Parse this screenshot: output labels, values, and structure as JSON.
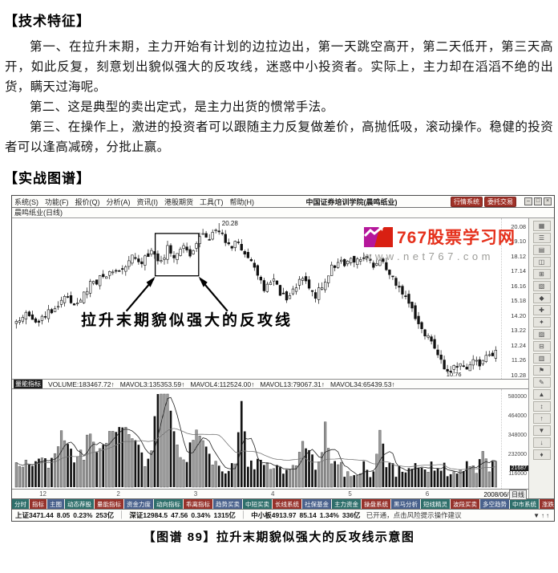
{
  "page": {
    "section1_title": "【技术特征】",
    "paragraphs": [
      "第一、在拉升末期，主力开始有计划的边拉边出，第一天跳空高开，第二天低开，第三天高开，如此反复，刻意划出貌似强大的反攻线，迷惑中小投资者。实际上，主力却在滔滔不绝的出货，瞒天过海呢。",
      "第二、这是典型的卖出定式，是主力出货的惯常手法。",
      "第三、在操作上，激进的投资者可以跟随主力反复做差价，高抛低吸，滚动操作。稳健的投资者可以逢高减磅，分批止赢。"
    ],
    "section2_title": "【实战图谱】",
    "caption": "【图谱 89】拉升末期貌似强大的反攻线示意图"
  },
  "app": {
    "menu": [
      "系统(S)",
      "功能(F)",
      "报价(Q)",
      "分析(A)",
      "资讯(I)",
      "港股期货",
      "工具(T)",
      "帮助(H)"
    ],
    "window_title": "中国证券培训学院(晨鸣纸业)",
    "header_buttons": [
      "行情系统",
      "委托交易"
    ],
    "window_controls": [
      "–",
      "□",
      "×"
    ],
    "tab_label": "晨鸣纸业(日线)",
    "watermark": {
      "brand": "767股票学习网",
      "url": "www.net767.com",
      "brand_color": "#e5301b"
    },
    "annotation": "拉升末期貌似强大的反攻线",
    "peak_label": "20.28",
    "low_label": "10.76",
    "indicator": {
      "name": "量能指标",
      "items": [
        "VOLUME:183467.72↑",
        "MAVOL3:135353.59↑",
        "MAVOL4:112524.00↑",
        "MAVOL13:79067.31↑",
        "MAVOL34:65439.53↑"
      ]
    },
    "price_axis": [
      "20.08",
      "19.10",
      "18.12",
      "17.14",
      "16.16",
      "15.18",
      "14.20",
      "13.22",
      "12.24",
      "11.26",
      "10.28"
    ],
    "volume_axis": [
      "580000",
      "464000",
      "348000",
      "232000",
      "116000"
    ],
    "volume_current": "21687",
    "date_ticks": [
      {
        "f": 0.05,
        "label": "12"
      },
      {
        "f": 0.21,
        "label": "2"
      },
      {
        "f": 0.37,
        "label": "3"
      },
      {
        "f": 0.53,
        "label": "4"
      },
      {
        "f": 0.69,
        "label": "5"
      },
      {
        "f": 0.85,
        "label": "6"
      }
    ],
    "date_label": "2008/06/11/三",
    "period_label": "日线",
    "chips": [
      "分时",
      "指标",
      "主图",
      "动态荐股",
      "量能指标",
      "资金力度",
      "动向指标",
      "乖离指标",
      "趋势买卖",
      "中短买卖",
      "长线系统",
      "社保基金",
      "主力资金",
      "操盘系统",
      "黑马分析",
      "短线精灵",
      "波段买卖",
      "多空趋势",
      "中市系统",
      "涨跌速度",
      "期现价差",
      "历史资料"
    ],
    "chip_colors": [
      "#2e6f6b",
      "#96312a",
      "#49618c"
    ],
    "status": [
      {
        "name": "上证",
        "value": "3471.44",
        "chg": "8.05",
        "pct": "0.23%",
        "amt": "253亿"
      },
      {
        "name": "深证",
        "value": "12984.5",
        "chg": "47.56",
        "pct": "0.34%",
        "amt": "1315亿"
      },
      {
        "name": "中小板",
        "value": "4913.97",
        "chg": "85.14",
        "pct": "1.34%",
        "amt": "336亿"
      }
    ],
    "marquee": "已开通，点击风险提示操作建议",
    "status_icons": [
      "▼",
      "↑",
      "↑"
    ],
    "strip_icons": [
      {
        "name": "grid",
        "glyph": "▦"
      },
      {
        "name": "list",
        "glyph": "☰"
      },
      {
        "name": "rows",
        "glyph": "▤"
      },
      {
        "name": "window",
        "glyph": "◫"
      },
      {
        "name": "plus-grid",
        "glyph": "⊞"
      },
      {
        "name": "hatch",
        "glyph": "▧"
      },
      {
        "name": "diamond",
        "glyph": "◆"
      },
      {
        "name": "cross",
        "glyph": "✚"
      },
      {
        "name": "star",
        "glyph": "✦"
      },
      {
        "name": "shade",
        "glyph": "▨"
      },
      {
        "name": "minus-grid",
        "glyph": "⊟"
      },
      {
        "name": "bars",
        "glyph": "▥"
      },
      {
        "name": "flag",
        "glyph": "⚑"
      },
      {
        "name": "pen",
        "glyph": "✎"
      },
      {
        "name": "triangle-up",
        "glyph": "▲"
      },
      {
        "name": "arrows-vert",
        "glyph": "↕"
      },
      {
        "name": "arrow-up",
        "glyph": "↑"
      },
      {
        "name": "triangle-down",
        "glyph": "▼"
      },
      {
        "name": "arrow-down",
        "glyph": "↓"
      },
      {
        "name": "diamond-small",
        "glyph": "♦"
      }
    ]
  },
  "chart_data": {
    "type": "candlestick+volume",
    "title": "晨鸣纸业 日线",
    "n": 150,
    "ylim": [
      10.0,
      20.6
    ],
    "peak_value": 20.28,
    "low_value": 10.76,
    "price_anchors": [
      [
        0.0,
        13.8
      ],
      [
        0.02,
        14.2
      ],
      [
        0.045,
        13.9
      ],
      [
        0.07,
        14.5
      ],
      [
        0.1,
        15.3
      ],
      [
        0.125,
        15.0
      ],
      [
        0.15,
        16.1
      ],
      [
        0.175,
        16.6
      ],
      [
        0.2,
        17.3
      ],
      [
        0.22,
        17.0
      ],
      [
        0.245,
        18.2
      ],
      [
        0.265,
        17.7
      ],
      [
        0.285,
        18.8
      ],
      [
        0.3,
        17.4
      ],
      [
        0.315,
        18.6
      ],
      [
        0.33,
        17.8
      ],
      [
        0.345,
        19.0
      ],
      [
        0.36,
        18.2
      ],
      [
        0.375,
        18.9
      ],
      [
        0.39,
        19.8
      ],
      [
        0.405,
        19.3
      ],
      [
        0.415,
        20.1
      ],
      [
        0.43,
        19.4
      ],
      [
        0.445,
        18.6
      ],
      [
        0.46,
        19.2
      ],
      [
        0.475,
        18.5
      ],
      [
        0.49,
        17.6
      ],
      [
        0.505,
        16.6
      ],
      [
        0.52,
        15.9
      ],
      [
        0.535,
        16.5
      ],
      [
        0.55,
        15.7
      ],
      [
        0.565,
        15.1
      ],
      [
        0.58,
        16.0
      ],
      [
        0.595,
        16.7
      ],
      [
        0.61,
        16.1
      ],
      [
        0.625,
        15.5
      ],
      [
        0.64,
        16.3
      ],
      [
        0.655,
        17.2
      ],
      [
        0.67,
        17.8
      ],
      [
        0.685,
        17.4
      ],
      [
        0.7,
        18.1
      ],
      [
        0.715,
        17.6
      ],
      [
        0.73,
        18.0
      ],
      [
        0.745,
        17.3
      ],
      [
        0.76,
        17.9
      ],
      [
        0.775,
        17.1
      ],
      [
        0.79,
        16.4
      ],
      [
        0.805,
        15.6
      ],
      [
        0.82,
        14.8
      ],
      [
        0.835,
        14.0
      ],
      [
        0.85,
        13.2
      ],
      [
        0.865,
        12.3
      ],
      [
        0.88,
        11.4
      ],
      [
        0.895,
        10.7
      ],
      [
        0.905,
        10.4
      ],
      [
        0.92,
        11.0
      ],
      [
        0.935,
        10.6
      ],
      [
        0.95,
        11.3
      ],
      [
        0.965,
        10.9
      ],
      [
        0.98,
        11.5
      ],
      [
        1.0,
        11.7
      ]
    ],
    "highlight_box": {
      "x0": 0.29,
      "x1": 0.38,
      "top": 19.6,
      "bottom": 16.8
    },
    "volume_spikes": [
      {
        "x": 0.1,
        "h": 0.3,
        "w": 0.02
      },
      {
        "x": 0.155,
        "h": 0.28,
        "w": 0.015
      },
      {
        "x": 0.2,
        "h": 0.38,
        "w": 0.02
      },
      {
        "x": 0.235,
        "h": 0.3,
        "w": 0.02
      },
      {
        "x": 0.3,
        "h": 0.85,
        "w": 0.012
      },
      {
        "x": 0.315,
        "h": 0.55,
        "w": 0.02
      },
      {
        "x": 0.38,
        "h": 0.35,
        "w": 0.02
      },
      {
        "x": 0.47,
        "h": 0.72,
        "w": 0.008
      },
      {
        "x": 0.6,
        "h": 0.28,
        "w": 0.015
      },
      {
        "x": 0.645,
        "h": 0.42,
        "w": 0.01
      },
      {
        "x": 0.76,
        "h": 0.35,
        "w": 0.01
      },
      {
        "x": 0.975,
        "h": 0.22,
        "w": 0.01
      }
    ]
  }
}
